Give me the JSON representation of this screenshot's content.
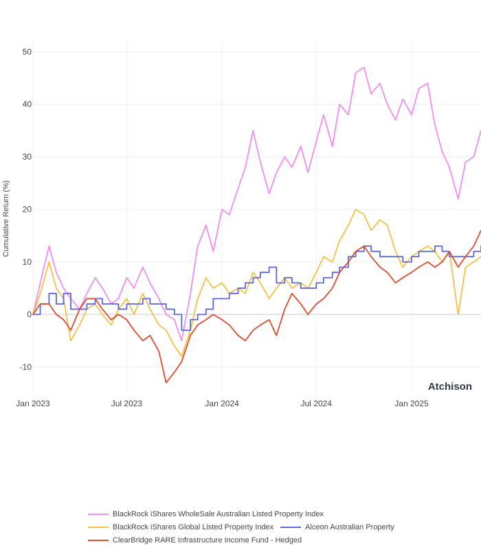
{
  "chart_data": {
    "type": "line",
    "ylabel": "Cumulative Return (%)",
    "xlabel": "",
    "ylim": [
      -15,
      52
    ],
    "xlim": [
      "2023-01-01",
      "2025-05-15"
    ],
    "yticks": [
      -10,
      0,
      10,
      20,
      30,
      40,
      50
    ],
    "xticks": [
      {
        "date": "2023-01-01",
        "label": "Jan 2023"
      },
      {
        "date": "2023-07-01",
        "label": "Jul 2023"
      },
      {
        "date": "2024-01-01",
        "label": "Jan 2024"
      },
      {
        "date": "2024-07-01",
        "label": "Jul 2024"
      },
      {
        "date": "2025-01-01",
        "label": "Jan 2025"
      }
    ],
    "grid": true,
    "legend_position": "bottom",
    "watermark": "Atchison",
    "series": [
      {
        "name": "BlackRock iShares WholeSale Australian Listed Property Index",
        "color": "#f28cf0",
        "style": "line",
        "points": [
          [
            "2023-01-01",
            0
          ],
          [
            "2023-01-15",
            6
          ],
          [
            "2023-02-01",
            13
          ],
          [
            "2023-02-15",
            8
          ],
          [
            "2023-03-01",
            5
          ],
          [
            "2023-03-15",
            3
          ],
          [
            "2023-04-01",
            1
          ],
          [
            "2023-04-15",
            4
          ],
          [
            "2023-05-01",
            7
          ],
          [
            "2023-05-15",
            5
          ],
          [
            "2023-06-01",
            2
          ],
          [
            "2023-06-15",
            3
          ],
          [
            "2023-07-01",
            7
          ],
          [
            "2023-07-15",
            5
          ],
          [
            "2023-08-01",
            9
          ],
          [
            "2023-08-15",
            6
          ],
          [
            "2023-09-01",
            3
          ],
          [
            "2023-09-15",
            0
          ],
          [
            "2023-10-01",
            -1
          ],
          [
            "2023-10-15",
            -5
          ],
          [
            "2023-11-01",
            4
          ],
          [
            "2023-11-15",
            13
          ],
          [
            "2023-12-01",
            17
          ],
          [
            "2023-12-15",
            12
          ],
          [
            "2024-01-01",
            20
          ],
          [
            "2024-01-15",
            19
          ],
          [
            "2024-02-01",
            24
          ],
          [
            "2024-02-15",
            28
          ],
          [
            "2024-03-01",
            35
          ],
          [
            "2024-03-15",
            29
          ],
          [
            "2024-04-01",
            23
          ],
          [
            "2024-04-15",
            27
          ],
          [
            "2024-05-01",
            30
          ],
          [
            "2024-05-15",
            28
          ],
          [
            "2024-06-01",
            32
          ],
          [
            "2024-06-15",
            27
          ],
          [
            "2024-07-01",
            33
          ],
          [
            "2024-07-15",
            38
          ],
          [
            "2024-08-01",
            32
          ],
          [
            "2024-08-15",
            40
          ],
          [
            "2024-09-01",
            38
          ],
          [
            "2024-09-15",
            46
          ],
          [
            "2024-10-01",
            47
          ],
          [
            "2024-10-15",
            42
          ],
          [
            "2024-11-01",
            44
          ],
          [
            "2024-11-15",
            40
          ],
          [
            "2024-12-01",
            37
          ],
          [
            "2024-12-15",
            41
          ],
          [
            "2025-01-01",
            38
          ],
          [
            "2025-01-15",
            43
          ],
          [
            "2025-02-01",
            44
          ],
          [
            "2025-02-15",
            36
          ],
          [
            "2025-03-01",
            31
          ],
          [
            "2025-03-15",
            28
          ],
          [
            "2025-04-01",
            22
          ],
          [
            "2025-04-15",
            29
          ],
          [
            "2025-05-01",
            30
          ],
          [
            "2025-05-15",
            35
          ]
        ]
      },
      {
        "name": "BlackRock iShares Global Listed Property Index",
        "color": "#f6c042",
        "style": "line",
        "points": [
          [
            "2023-01-01",
            0
          ],
          [
            "2023-01-15",
            4
          ],
          [
            "2023-02-01",
            10
          ],
          [
            "2023-02-15",
            5
          ],
          [
            "2023-03-01",
            3
          ],
          [
            "2023-03-15",
            -5
          ],
          [
            "2023-04-01",
            -2
          ],
          [
            "2023-04-15",
            1
          ],
          [
            "2023-05-01",
            2
          ],
          [
            "2023-05-15",
            0
          ],
          [
            "2023-06-01",
            -2
          ],
          [
            "2023-06-15",
            1
          ],
          [
            "2023-07-01",
            3
          ],
          [
            "2023-07-15",
            0
          ],
          [
            "2023-08-01",
            4
          ],
          [
            "2023-08-15",
            1
          ],
          [
            "2023-09-01",
            -2
          ],
          [
            "2023-09-15",
            -3
          ],
          [
            "2023-10-01",
            -6
          ],
          [
            "2023-10-15",
            -8
          ],
          [
            "2023-11-01",
            -3
          ],
          [
            "2023-11-15",
            3
          ],
          [
            "2023-12-01",
            7
          ],
          [
            "2023-12-15",
            5
          ],
          [
            "2024-01-01",
            6
          ],
          [
            "2024-01-15",
            4
          ],
          [
            "2024-02-01",
            5
          ],
          [
            "2024-02-15",
            4
          ],
          [
            "2024-03-01",
            8
          ],
          [
            "2024-03-15",
            6
          ],
          [
            "2024-04-01",
            3
          ],
          [
            "2024-04-15",
            5
          ],
          [
            "2024-05-01",
            7
          ],
          [
            "2024-05-15",
            5
          ],
          [
            "2024-06-01",
            6
          ],
          [
            "2024-06-15",
            5
          ],
          [
            "2024-07-01",
            8
          ],
          [
            "2024-07-15",
            11
          ],
          [
            "2024-08-01",
            10
          ],
          [
            "2024-08-15",
            14
          ],
          [
            "2024-09-01",
            17
          ],
          [
            "2024-09-15",
            20
          ],
          [
            "2024-10-01",
            19
          ],
          [
            "2024-10-15",
            16
          ],
          [
            "2024-11-01",
            18
          ],
          [
            "2024-11-15",
            17
          ],
          [
            "2024-12-01",
            12
          ],
          [
            "2024-12-15",
            9
          ],
          [
            "2025-01-01",
            11
          ],
          [
            "2025-01-15",
            12
          ],
          [
            "2025-02-01",
            13
          ],
          [
            "2025-02-15",
            12
          ],
          [
            "2025-03-01",
            10
          ],
          [
            "2025-03-15",
            12
          ],
          [
            "2025-04-01",
            0
          ],
          [
            "2025-04-15",
            9
          ],
          [
            "2025-05-01",
            10
          ],
          [
            "2025-05-15",
            11
          ]
        ]
      },
      {
        "name": "Alceon Australian Property",
        "color": "#5b67e0",
        "style": "step",
        "points": [
          [
            "2023-01-01",
            0
          ],
          [
            "2023-01-15",
            2
          ],
          [
            "2023-02-01",
            4
          ],
          [
            "2023-02-15",
            2
          ],
          [
            "2023-03-01",
            4
          ],
          [
            "2023-03-15",
            1
          ],
          [
            "2023-04-01",
            1
          ],
          [
            "2023-04-15",
            2
          ],
          [
            "2023-05-01",
            3
          ],
          [
            "2023-05-15",
            2
          ],
          [
            "2023-06-01",
            2
          ],
          [
            "2023-06-15",
            1
          ],
          [
            "2023-07-01",
            2
          ],
          [
            "2023-07-15",
            2
          ],
          [
            "2023-08-01",
            3
          ],
          [
            "2023-08-15",
            2
          ],
          [
            "2023-09-01",
            2
          ],
          [
            "2023-09-15",
            1
          ],
          [
            "2023-10-01",
            0
          ],
          [
            "2023-10-15",
            -3
          ],
          [
            "2023-11-01",
            -1
          ],
          [
            "2023-11-15",
            0
          ],
          [
            "2023-12-01",
            1
          ],
          [
            "2023-12-15",
            3
          ],
          [
            "2024-01-01",
            3
          ],
          [
            "2024-01-15",
            4
          ],
          [
            "2024-02-01",
            5
          ],
          [
            "2024-02-15",
            6
          ],
          [
            "2024-03-01",
            7
          ],
          [
            "2024-03-15",
            8
          ],
          [
            "2024-04-01",
            9
          ],
          [
            "2024-04-15",
            6
          ],
          [
            "2024-05-01",
            7
          ],
          [
            "2024-05-15",
            6
          ],
          [
            "2024-06-01",
            5
          ],
          [
            "2024-06-15",
            5
          ],
          [
            "2024-07-01",
            6
          ],
          [
            "2024-07-15",
            7
          ],
          [
            "2024-08-01",
            8
          ],
          [
            "2024-08-15",
            9
          ],
          [
            "2024-09-01",
            11
          ],
          [
            "2024-09-15",
            12
          ],
          [
            "2024-10-01",
            13
          ],
          [
            "2024-10-15",
            12
          ],
          [
            "2024-11-01",
            11
          ],
          [
            "2024-11-15",
            11
          ],
          [
            "2024-12-01",
            11
          ],
          [
            "2024-12-15",
            10
          ],
          [
            "2025-01-01",
            11
          ],
          [
            "2025-01-15",
            12
          ],
          [
            "2025-02-01",
            12
          ],
          [
            "2025-02-15",
            13
          ],
          [
            "2025-03-01",
            12
          ],
          [
            "2025-03-15",
            11
          ],
          [
            "2025-04-01",
            11
          ],
          [
            "2025-04-15",
            11
          ],
          [
            "2025-05-01",
            12
          ],
          [
            "2025-05-15",
            13
          ]
        ]
      },
      {
        "name": "ClearBridge RARE Infrastructure Income Fund - Hedged",
        "color": "#e04a2c",
        "style": "line",
        "points": [
          [
            "2023-01-01",
            0
          ],
          [
            "2023-01-15",
            2
          ],
          [
            "2023-02-01",
            2
          ],
          [
            "2023-02-15",
            0
          ],
          [
            "2023-03-01",
            -1
          ],
          [
            "2023-03-15",
            -3
          ],
          [
            "2023-04-01",
            1
          ],
          [
            "2023-04-15",
            3
          ],
          [
            "2023-05-01",
            3
          ],
          [
            "2023-05-15",
            1
          ],
          [
            "2023-06-01",
            -1
          ],
          [
            "2023-06-15",
            0
          ],
          [
            "2023-07-01",
            -1
          ],
          [
            "2023-07-15",
            -3
          ],
          [
            "2023-08-01",
            -5
          ],
          [
            "2023-08-15",
            -4
          ],
          [
            "2023-09-01",
            -7
          ],
          [
            "2023-09-15",
            -13
          ],
          [
            "2023-10-01",
            -11
          ],
          [
            "2023-10-15",
            -9
          ],
          [
            "2023-11-01",
            -4
          ],
          [
            "2023-11-15",
            -2
          ],
          [
            "2023-12-01",
            -1
          ],
          [
            "2023-12-15",
            0
          ],
          [
            "2024-01-01",
            -1
          ],
          [
            "2024-01-15",
            -2
          ],
          [
            "2024-02-01",
            -4
          ],
          [
            "2024-02-15",
            -5
          ],
          [
            "2024-03-01",
            -3
          ],
          [
            "2024-03-15",
            -2
          ],
          [
            "2024-04-01",
            -1
          ],
          [
            "2024-04-15",
            -4
          ],
          [
            "2024-05-01",
            1
          ],
          [
            "2024-05-15",
            4
          ],
          [
            "2024-06-01",
            2
          ],
          [
            "2024-06-15",
            0
          ],
          [
            "2024-07-01",
            2
          ],
          [
            "2024-07-15",
            3
          ],
          [
            "2024-08-01",
            5
          ],
          [
            "2024-08-15",
            8
          ],
          [
            "2024-09-01",
            10
          ],
          [
            "2024-09-15",
            12
          ],
          [
            "2024-10-01",
            13
          ],
          [
            "2024-10-15",
            11
          ],
          [
            "2024-11-01",
            9
          ],
          [
            "2024-11-15",
            8
          ],
          [
            "2024-12-01",
            6
          ],
          [
            "2024-12-15",
            7
          ],
          [
            "2025-01-01",
            8
          ],
          [
            "2025-01-15",
            9
          ],
          [
            "2025-02-01",
            10
          ],
          [
            "2025-02-15",
            9
          ],
          [
            "2025-03-01",
            10
          ],
          [
            "2025-03-15",
            12
          ],
          [
            "2025-04-01",
            9
          ],
          [
            "2025-04-15",
            11
          ],
          [
            "2025-05-01",
            13
          ],
          [
            "2025-05-15",
            16
          ]
        ]
      }
    ]
  }
}
